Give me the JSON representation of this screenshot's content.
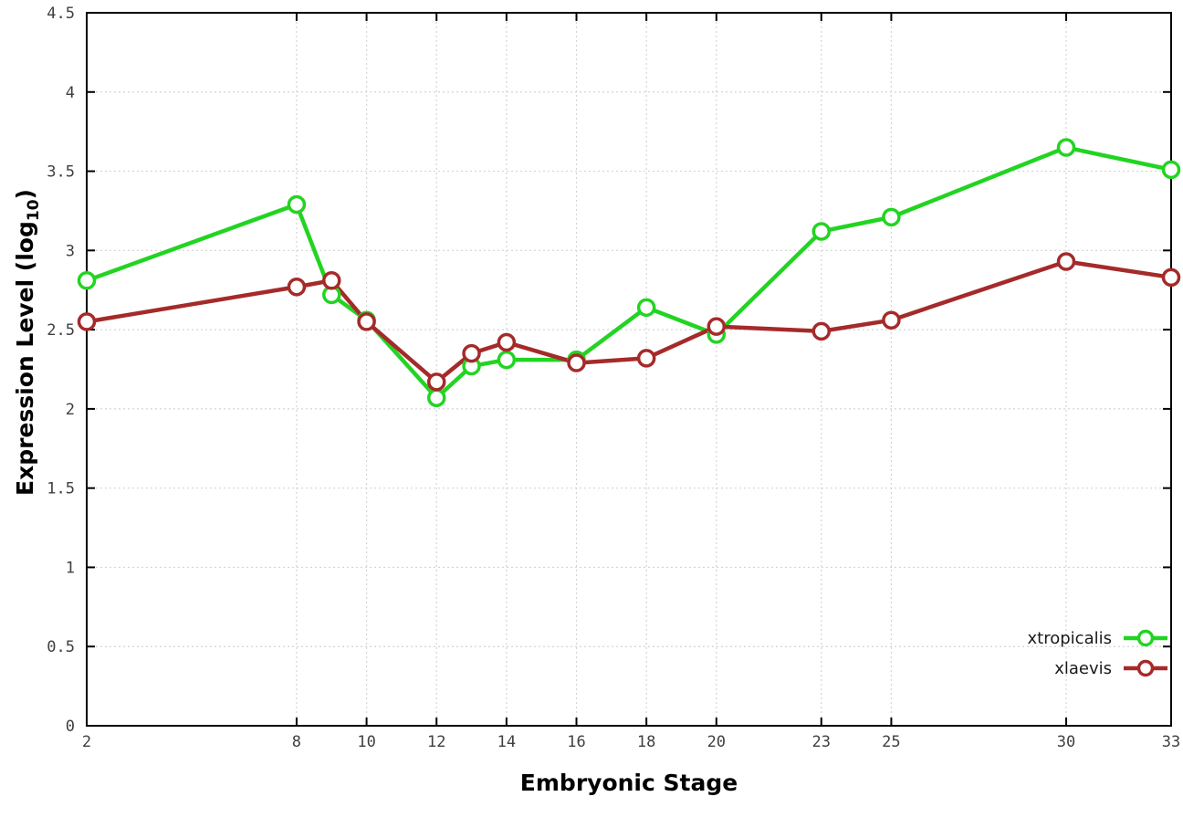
{
  "page": {
    "background": "#ffffff"
  },
  "chart_data": {
    "type": "line",
    "title": "",
    "xlabel": "Embryonic Stage",
    "ylabel": "Expression Level (log10)",
    "ylabel_parts": {
      "prefix": "Expression Level (log",
      "sub": "10",
      "suffix": ")"
    },
    "xlim": [
      2,
      33
    ],
    "ylim": [
      0,
      4.5
    ],
    "x": [
      2,
      8,
      9,
      10,
      12,
      13,
      14,
      16,
      18,
      20,
      23,
      25,
      30,
      33
    ],
    "x_ticks": [
      2,
      8,
      10,
      12,
      14,
      16,
      18,
      20,
      23,
      25,
      30,
      33
    ],
    "x_tick_labels": [
      "2",
      "8",
      "10",
      "12",
      "14",
      "16",
      "18",
      "20",
      "23",
      "25",
      "30",
      "33"
    ],
    "y_ticks": [
      0,
      0.5,
      1,
      1.5,
      2,
      2.5,
      3,
      3.5,
      4,
      4.5
    ],
    "y_tick_labels": [
      "0",
      "0.5",
      "1",
      "1.5",
      "2",
      "2.5",
      "3",
      "3.5",
      "4",
      "4.5"
    ],
    "grid": true,
    "legend_position": "bottom-right",
    "series": [
      {
        "name": "xtropicalis",
        "color": "#22d422",
        "values": [
          2.81,
          3.29,
          2.72,
          2.56,
          2.07,
          2.27,
          2.31,
          2.31,
          2.64,
          2.47,
          3.12,
          3.21,
          3.65,
          3.51
        ]
      },
      {
        "name": "xlaevis",
        "color": "#a52a2a",
        "values": [
          2.55,
          2.77,
          2.81,
          2.55,
          2.17,
          2.35,
          2.42,
          2.29,
          2.32,
          2.52,
          2.49,
          2.56,
          2.93,
          2.83
        ]
      }
    ],
    "colors": {
      "grid": "#d4d4d4",
      "axis": "#000000",
      "tick_text": "#404040",
      "marker_fill": "#ffffff"
    }
  }
}
